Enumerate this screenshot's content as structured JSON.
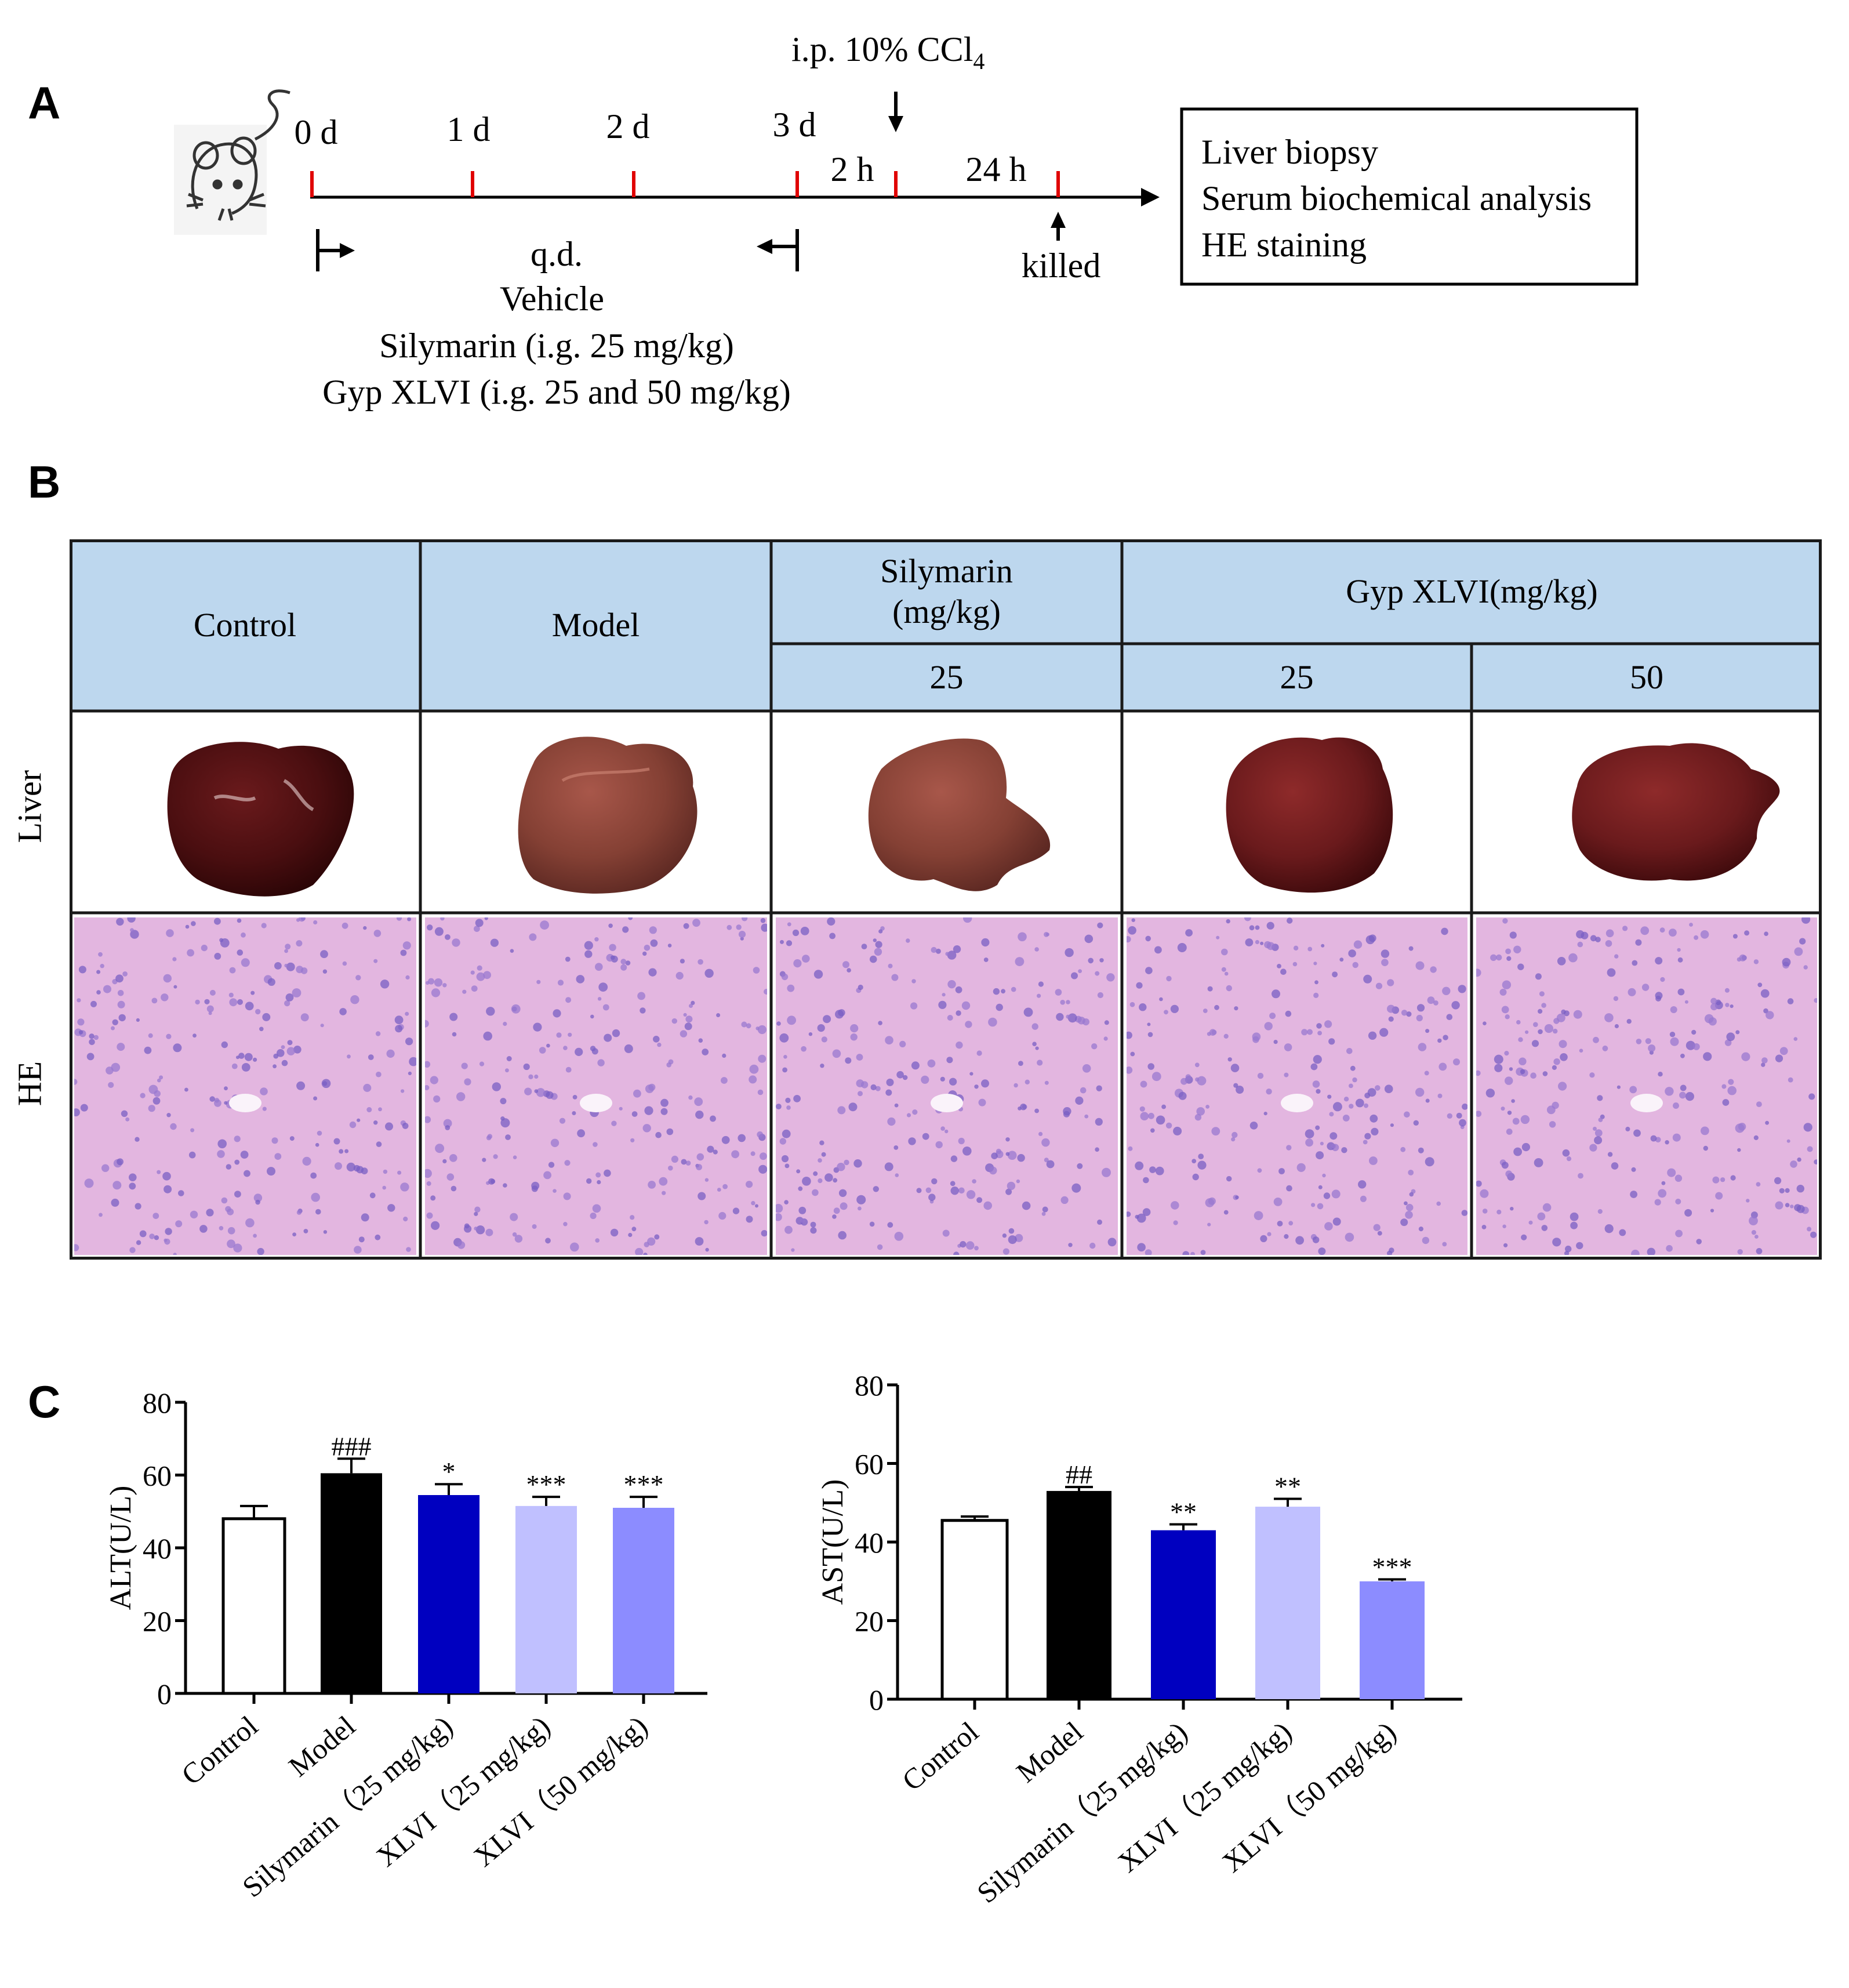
{
  "panel_a": {
    "letter": "A",
    "injection_label": "i.p. 10% CCl",
    "injection_sub": "4",
    "days": [
      "0 d",
      "1 d",
      "2 d",
      "3 d"
    ],
    "h2": "2 h",
    "h24": "24 h",
    "killed": "killed",
    "qd": "q.d.",
    "vehicle": "Vehicle",
    "silymarin": "Silymarin (i.g. 25 mg/kg)",
    "gyp": "Gyp XLVI (i.g. 25 and 50 mg/kg)",
    "box_lines": [
      "Liver biopsy",
      "Serum biochemical  analysis",
      "HE staining"
    ],
    "tick_color": "#e00000"
  },
  "panel_b": {
    "letter": "B",
    "header_color": "#bdd7ee",
    "col_control": "Control",
    "col_model": "Model",
    "col_silymarin_1": "Silymarin",
    "col_silymarin_2": "(mg/kg)",
    "col_gyp": "Gyp XLVI(mg/kg)",
    "dose_sily": "25",
    "dose_gyp_low": "25",
    "dose_gyp_high": "50",
    "row_liver": "Liver",
    "row_he": "HE"
  },
  "panel_c": {
    "letter": "C"
  },
  "chart_data": [
    {
      "type": "bar",
      "ylabel": "ALT(U/L)",
      "ylim": [
        0,
        80
      ],
      "yticks": [
        0,
        20,
        40,
        60,
        80
      ],
      "categories": [
        "Control",
        "Model",
        "Silymarin（25 mg/kg)",
        "XLVI（25 mg/kg)",
        "XLVI（50 mg/kg)"
      ],
      "values": [
        48,
        60.5,
        54.5,
        51.5,
        51
      ],
      "errors": [
        3.5,
        4,
        3,
        2.5,
        3
      ],
      "significance": [
        "",
        "###",
        "*",
        "***",
        "***"
      ],
      "colors": [
        "#ffffff",
        "#000000",
        "#0000c0",
        "#c0c0ff",
        "#8c8cff"
      ]
    },
    {
      "type": "bar",
      "ylabel": "AST(U/L)",
      "ylim": [
        0,
        80
      ],
      "yticks": [
        0,
        20,
        40,
        60,
        80
      ],
      "categories": [
        "Control",
        "Model",
        "Silymarin（25 mg/kg)",
        "XLVI（25 mg/kg)",
        "XLVI（50 mg/kg)"
      ],
      "values": [
        45.5,
        53,
        43,
        49,
        30
      ],
      "errors": [
        1,
        1,
        1.5,
        2,
        0.5
      ],
      "significance": [
        "",
        "##",
        "**",
        "**",
        "***"
      ],
      "colors": [
        "#ffffff",
        "#000000",
        "#0000c0",
        "#c0c0ff",
        "#8c8cff"
      ]
    }
  ]
}
